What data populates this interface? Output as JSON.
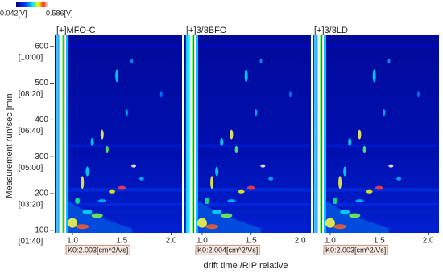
{
  "chart_data": {
    "type": "heatmap",
    "colorbar": {
      "min_label": "0.042[V]",
      "max_label": "0.586[V]"
    },
    "ylabel": "Measurement run/sec [min]",
    "xlabel": "drift time /RIP relative",
    "ylim": [
      93,
      630
    ],
    "yticks": [
      100,
      200,
      300,
      400,
      500,
      600
    ],
    "ytick_sublabels": [
      "[01:40]",
      "[03:20]",
      "[05:00]",
      "[06:40]",
      "[08:20]",
      "[10:00]"
    ],
    "xlim": [
      0.82,
      2.11
    ],
    "xticks": [
      {
        "value": 1.0,
        "label": "1.0"
      },
      1.5,
      {
        "value": 2.0,
        "label": "2.0"
      }
    ],
    "panels": [
      {
        "title": "[+]MFO-C",
        "annotation": "K0:2.003[cm^2/Vs]"
      },
      {
        "title": "[+]3/3BFO",
        "annotation": "K0:2.004[cm^2/Vs]"
      },
      {
        "title": "[+]3/3LD",
        "annotation": "K0:2.003[cm^2/Vs]"
      }
    ]
  }
}
